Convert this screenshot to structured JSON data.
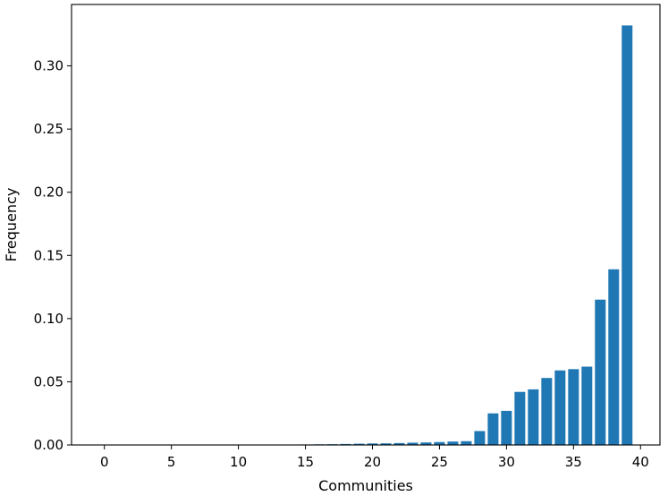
{
  "chart_data": {
    "type": "bar",
    "title": "",
    "xlabel": "Communities",
    "ylabel": "Frequency",
    "x": [
      0,
      1,
      2,
      3,
      4,
      5,
      6,
      7,
      8,
      9,
      10,
      11,
      12,
      13,
      14,
      15,
      16,
      17,
      18,
      19,
      20,
      21,
      22,
      23,
      24,
      25,
      26,
      27,
      28,
      29,
      30,
      31,
      32,
      33,
      34,
      35,
      36,
      37,
      38,
      39
    ],
    "values": [
      0,
      0,
      0,
      0,
      0,
      0,
      0,
      0,
      0,
      0,
      0,
      0,
      0,
      0,
      0.0002,
      0.0004,
      0.0005,
      0.0006,
      0.0008,
      0.001,
      0.0012,
      0.0013,
      0.0015,
      0.0018,
      0.002,
      0.0023,
      0.0027,
      0.003,
      0.011,
      0.025,
      0.027,
      0.042,
      0.044,
      0.053,
      0.059,
      0.06,
      0.062,
      0.115,
      0.139,
      0.332
    ],
    "xlim": [
      -2.45,
      41.45
    ],
    "ylim": [
      0,
      0.3486
    ],
    "xticks": [
      0,
      5,
      10,
      15,
      20,
      25,
      30,
      35,
      40
    ],
    "xtick_labels": [
      "0",
      "5",
      "10",
      "15",
      "20",
      "25",
      "30",
      "35",
      "40"
    ],
    "yticks": [
      0,
      0.05,
      0.1,
      0.15,
      0.2,
      0.25,
      0.3
    ],
    "ytick_labels": [
      "0.00",
      "0.05",
      "0.10",
      "0.15",
      "0.20",
      "0.25",
      "0.30"
    ],
    "bar_width": 0.8,
    "grid": false,
    "legend": "none",
    "colors": {
      "bar": "#1f77b4"
    }
  }
}
